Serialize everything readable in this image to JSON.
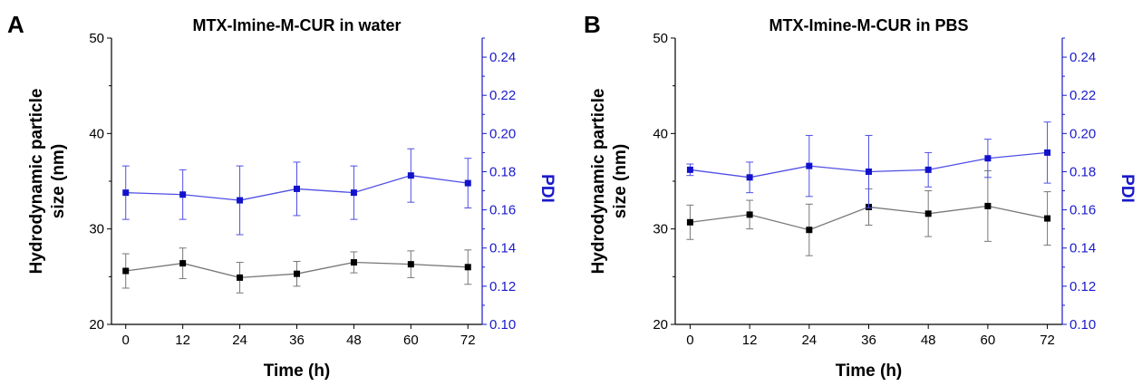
{
  "colors": {
    "size_series": "#777777",
    "size_marker": "#000000",
    "pdi_series": "#4f4fe6",
    "pdi_marker": "#1212cc",
    "pdi_axis": "#1a1acc",
    "axis": "#000000"
  },
  "chart_data": [
    {
      "type": "line",
      "panel": "A",
      "title": "MTX-Imine-M-CUR in water",
      "xlabel": "Time (h)",
      "ylabel": "Hydrodynamic particle size (nm)",
      "ylabel_lines": [
        "Hydrodynamic particle",
        "size (nm)"
      ],
      "y2label": "PDI",
      "x": [
        0,
        12,
        24,
        36,
        48,
        60,
        72
      ],
      "xticks": [
        "0",
        "12",
        "24",
        "36",
        "48",
        "60",
        "72"
      ],
      "xlim": [
        -3,
        75
      ],
      "ylim": [
        20,
        50
      ],
      "yticks": [
        "20",
        "30",
        "40",
        "50"
      ],
      "y2lim": [
        0.1,
        0.25
      ],
      "y2ticks": [
        "0.10",
        "0.12",
        "0.14",
        "0.16",
        "0.18",
        "0.20",
        "0.22",
        "0.24"
      ],
      "series": [
        {
          "axis": "left",
          "values": [
            25.6,
            26.4,
            24.9,
            25.3,
            26.5,
            26.3,
            26.0
          ],
          "errors": [
            1.8,
            1.6,
            1.6,
            1.3,
            1.1,
            1.4,
            1.8
          ]
        },
        {
          "axis": "right",
          "values": [
            0.169,
            0.168,
            0.165,
            0.171,
            0.169,
            0.178,
            0.174
          ],
          "errors": [
            0.014,
            0.013,
            0.018,
            0.014,
            0.014,
            0.014,
            0.013
          ]
        }
      ]
    },
    {
      "type": "line",
      "panel": "B",
      "title": "MTX-Imine-M-CUR in PBS",
      "xlabel": "Time (h)",
      "ylabel": "Hydrodynamic particle size (nm)",
      "ylabel_lines": [
        "Hydrodynamic particle",
        "size (nm)"
      ],
      "y2label": "PDI",
      "x": [
        0,
        12,
        24,
        36,
        48,
        60,
        72
      ],
      "xticks": [
        "0",
        "12",
        "24",
        "36",
        "48",
        "60",
        "72"
      ],
      "xlim": [
        -3,
        75
      ],
      "ylim": [
        20,
        50
      ],
      "yticks": [
        "20",
        "30",
        "40",
        "50"
      ],
      "y2lim": [
        0.1,
        0.25
      ],
      "y2ticks": [
        "0.10",
        "0.12",
        "0.14",
        "0.16",
        "0.18",
        "0.20",
        "0.22",
        "0.24"
      ],
      "series": [
        {
          "axis": "left",
          "values": [
            30.7,
            31.5,
            29.9,
            32.3,
            31.6,
            32.4,
            31.1
          ],
          "errors": [
            1.8,
            1.5,
            2.7,
            1.9,
            2.4,
            3.7,
            2.8
          ]
        },
        {
          "axis": "right",
          "values": [
            0.181,
            0.177,
            0.183,
            0.18,
            0.181,
            0.187,
            0.19
          ],
          "errors": [
            0.003,
            0.008,
            0.016,
            0.019,
            0.009,
            0.01,
            0.016
          ]
        }
      ]
    }
  ]
}
